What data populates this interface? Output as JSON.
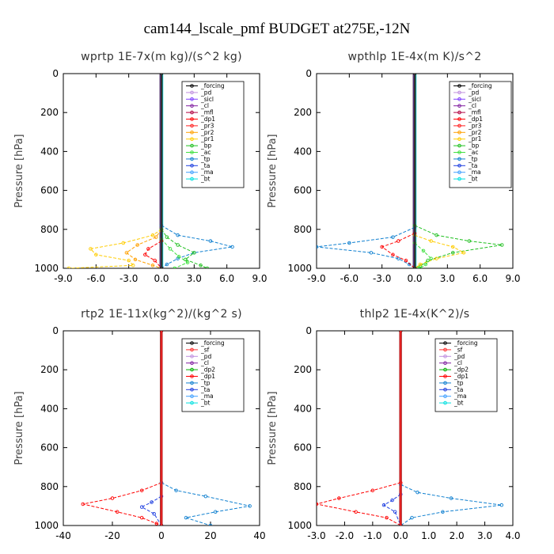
{
  "title": "cam144_lscale_pmf  BUDGET at275E,-12N",
  "colors": {
    "forcing": "#000000",
    "pd": "#c090e0",
    "sicl": "#8040ff",
    "cl": "#8020a0",
    "mfl": "#b00040",
    "dp1": "#ff0000",
    "pr3": "#ff2020",
    "pr2": "#ffa000",
    "pr1": "#ffcc00",
    "bp": "#20c020",
    "ac": "#40e040",
    "tp": "#1080d0",
    "ta": "#2040e0",
    "ma": "#40a0ff",
    "bt": "#00e0e0",
    "sf": "#ff3030",
    "dp2": "#00b000"
  },
  "chart_data": [
    {
      "type": "line",
      "title": "wprtp  1E-7x(m kg)/(s^2 kg)",
      "ylabel": "Pressure [hPa]",
      "xlim": [
        -9,
        9
      ],
      "ylim": [
        0,
        1000
      ],
      "xticks": [
        "-9.0",
        "-6.0",
        "-3.0",
        "0.0",
        "3.0",
        "6.0",
        "9.0"
      ],
      "yticks": [
        "0",
        "200",
        "400",
        "600",
        "800",
        "1000"
      ],
      "legend": [
        "_forcing",
        "_pd",
        "_sicl",
        "_cl",
        "_mfl",
        "_dp1",
        "_pr3",
        "_pr2",
        "_pr1",
        "_bp",
        "_ac",
        "_tp",
        "_ta",
        "_ma",
        "_bt"
      ],
      "series": [
        {
          "key": "pr1",
          "values": [
            [
              0,
              800
            ],
            [
              -0.8,
              830
            ],
            [
              -3.5,
              870
            ],
            [
              -6.5,
              900
            ],
            [
              -6,
              930
            ],
            [
              -3,
              960
            ],
            [
              -2.6,
              985
            ],
            [
              -8.5,
              1000
            ]
          ]
        },
        {
          "key": "pr2",
          "values": [
            [
              0,
              800
            ],
            [
              -0.5,
              840
            ],
            [
              -2.2,
              880
            ],
            [
              -3.2,
              920
            ],
            [
              -2.4,
              955
            ],
            [
              -0.8,
              985
            ],
            [
              0,
              1000
            ]
          ]
        },
        {
          "key": "tp",
          "values": [
            [
              0,
              780
            ],
            [
              1.5,
              830
            ],
            [
              4.5,
              860
            ],
            [
              6.5,
              890
            ],
            [
              3,
              920
            ],
            [
              1.5,
              950
            ],
            [
              0.5,
              980
            ],
            [
              0,
              1000
            ]
          ]
        },
        {
          "key": "bp",
          "values": [
            [
              0,
              800
            ],
            [
              0.5,
              840
            ],
            [
              1.5,
              880
            ],
            [
              3,
              920
            ],
            [
              2.2,
              955
            ],
            [
              3.6,
              985
            ],
            [
              4.2,
              1000
            ]
          ]
        },
        {
          "key": "ac",
          "values": [
            [
              0,
              850
            ],
            [
              0.8,
              900
            ],
            [
              1.6,
              940
            ],
            [
              2.4,
              970
            ],
            [
              1.2,
              1000
            ]
          ]
        },
        {
          "key": "dp1",
          "values": [
            [
              0,
              860
            ],
            [
              -1.2,
              900
            ],
            [
              -1.5,
              930
            ],
            [
              -0.6,
              960
            ],
            [
              0,
              1000
            ]
          ]
        },
        {
          "key": "forcing",
          "values": [
            [
              0,
              0
            ],
            [
              0,
              1000
            ]
          ]
        }
      ]
    },
    {
      "type": "line",
      "title": "wpthlp  1E-4x(m K)/s^2",
      "ylabel": "Pressure [hPa]",
      "xlim": [
        -9,
        9
      ],
      "ylim": [
        0,
        1000
      ],
      "xticks": [
        "-9.0",
        "-6.0",
        "-3.0",
        "0.0",
        "3.0",
        "6.0",
        "9.0"
      ],
      "yticks": [
        "0",
        "200",
        "400",
        "600",
        "800",
        "1000"
      ],
      "legend": [
        "_forcing",
        "_pd",
        "_sicl",
        "_cl",
        "_mfl",
        "_dp1",
        "_pr3",
        "_pr2",
        "_pr1",
        "_bp",
        "_ac",
        "_tp",
        "_ta",
        "_ma",
        "_bt"
      ],
      "series": [
        {
          "key": "tp",
          "values": [
            [
              0,
              790
            ],
            [
              -2,
              840
            ],
            [
              -6,
              870
            ],
            [
              -9,
              890
            ],
            [
              -4,
              920
            ],
            [
              -1.5,
              950
            ],
            [
              -0.5,
              980
            ],
            [
              0,
              1000
            ]
          ]
        },
        {
          "key": "bp",
          "values": [
            [
              0,
              780
            ],
            [
              2,
              830
            ],
            [
              5,
              860
            ],
            [
              8,
              880
            ],
            [
              3.5,
              920
            ],
            [
              1.2,
              960
            ],
            [
              0.5,
              990
            ],
            [
              0.3,
              1000
            ]
          ]
        },
        {
          "key": "pr1",
          "values": [
            [
              0,
              830
            ],
            [
              1.5,
              860
            ],
            [
              3.5,
              890
            ],
            [
              4.5,
              920
            ],
            [
              2,
              950
            ],
            [
              0.5,
              980
            ],
            [
              0,
              1000
            ]
          ]
        },
        {
          "key": "dp1",
          "values": [
            [
              0,
              820
            ],
            [
              -1.5,
              860
            ],
            [
              -3,
              890
            ],
            [
              -2,
              930
            ],
            [
              -0.8,
              960
            ],
            [
              0,
              1000
            ]
          ]
        },
        {
          "key": "ac",
          "values": [
            [
              0,
              870
            ],
            [
              0.8,
              910
            ],
            [
              1.5,
              950
            ],
            [
              1,
              980
            ],
            [
              0.5,
              1000
            ]
          ]
        },
        {
          "key": "forcing",
          "values": [
            [
              0,
              0
            ],
            [
              0,
              1000
            ]
          ]
        }
      ]
    },
    {
      "type": "line",
      "title": "rtp2  1E-11x(kg^2)/(kg^2 s)",
      "ylabel": "Pressure [hPa]",
      "xlim": [
        -40,
        40
      ],
      "ylim": [
        0,
        1000
      ],
      "xticks": [
        "-40",
        "-20",
        "0",
        "20",
        "40"
      ],
      "yticks": [
        "0",
        "200",
        "400",
        "600",
        "800",
        "1000"
      ],
      "legend": [
        "_forcing",
        "_sf",
        "_pd",
        "_cl",
        "_dp2",
        "_dp1",
        "_tp",
        "_ta",
        "_ma",
        "_bt"
      ],
      "series": [
        {
          "key": "dp1",
          "values": [
            [
              0,
              780
            ],
            [
              -8,
              820
            ],
            [
              -20,
              860
            ],
            [
              -32,
              890
            ],
            [
              -18,
              930
            ],
            [
              -8,
              960
            ],
            [
              -2,
              990
            ],
            [
              0,
              1000
            ]
          ]
        },
        {
          "key": "tp",
          "values": [
            [
              0,
              780
            ],
            [
              6,
              820
            ],
            [
              18,
              850
            ],
            [
              36,
              900
            ],
            [
              22,
              930
            ],
            [
              10,
              960
            ],
            [
              20,
              1000
            ]
          ]
        },
        {
          "key": "ta",
          "values": [
            [
              0,
              850
            ],
            [
              -4,
              880
            ],
            [
              -8,
              905
            ],
            [
              -3,
              940
            ],
            [
              0,
              1000
            ]
          ]
        },
        {
          "key": "forcing",
          "values": [
            [
              0,
              0
            ],
            [
              0,
              1000
            ]
          ]
        }
      ]
    },
    {
      "type": "line",
      "title": "thlp2  1E-4x(K^2)/s",
      "ylabel": "Pressure [hPa]",
      "xlim": [
        -3,
        4
      ],
      "ylim": [
        0,
        1000
      ],
      "xticks": [
        "-3.0",
        "-2.0",
        "-1.0",
        "0.0",
        "1.0",
        "2.0",
        "3.0",
        "4.0"
      ],
      "yticks": [
        "0",
        "200",
        "400",
        "600",
        "800",
        "1000"
      ],
      "legend": [
        "_forcing",
        "_sf",
        "_pd",
        "_cl",
        "_dp2",
        "_dp1",
        "_tp",
        "_ta",
        "_ma",
        "_bt"
      ],
      "series": [
        {
          "key": "dp1",
          "values": [
            [
              0,
              780
            ],
            [
              -1,
              820
            ],
            [
              -2.2,
              860
            ],
            [
              -3,
              890
            ],
            [
              -1.6,
              930
            ],
            [
              -0.5,
              960
            ],
            [
              0,
              1000
            ]
          ]
        },
        {
          "key": "tp",
          "values": [
            [
              0,
              790
            ],
            [
              0.6,
              830
            ],
            [
              1.8,
              860
            ],
            [
              3.6,
              895
            ],
            [
              1.5,
              930
            ],
            [
              0.4,
              960
            ],
            [
              0,
              1000
            ]
          ]
        },
        {
          "key": "ta",
          "values": [
            [
              0,
              840
            ],
            [
              -0.3,
              870
            ],
            [
              -0.6,
              895
            ],
            [
              -0.2,
              930
            ],
            [
              0,
              1000
            ]
          ]
        },
        {
          "key": "forcing",
          "values": [
            [
              0,
              0
            ],
            [
              0,
              1000
            ]
          ]
        }
      ]
    }
  ]
}
